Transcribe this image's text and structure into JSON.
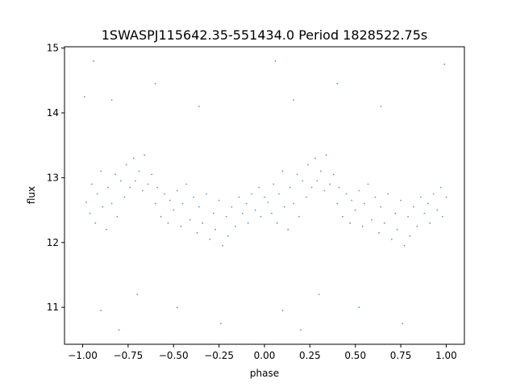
{
  "chart_data": {
    "type": "scatter",
    "title": "1SWASPJ115642.35-551434.0 Period 1828522.75s",
    "xlabel": "phase",
    "ylabel": "flux",
    "xlim": [
      -1.1,
      1.1
    ],
    "ylim": [
      10.43,
      15.02
    ],
    "grid": false,
    "point_color": "#1f77b4",
    "x_ticks": [
      -1.0,
      -0.75,
      -0.5,
      -0.25,
      0.0,
      0.25,
      0.5,
      0.75,
      1.0
    ],
    "x_tick_labels": [
      "−1.00",
      "−0.75",
      "−0.50",
      "−0.25",
      "0.00",
      "0.25",
      "0.50",
      "0.75",
      "1.00"
    ],
    "y_ticks": [
      11,
      12,
      13,
      14,
      15
    ],
    "y_tick_labels": [
      "11",
      "12",
      "13",
      "14",
      "15"
    ],
    "points": [
      [
        -0.98,
        12.62
      ],
      [
        -0.96,
        12.45
      ],
      [
        -0.95,
        12.9
      ],
      [
        -0.93,
        12.3
      ],
      [
        -0.92,
        12.75
      ],
      [
        -0.9,
        13.1
      ],
      [
        -0.89,
        12.55
      ],
      [
        -0.87,
        12.2
      ],
      [
        -0.86,
        12.85
      ],
      [
        -0.84,
        12.6
      ],
      [
        -0.82,
        13.05
      ],
      [
        -0.81,
        12.4
      ],
      [
        -0.79,
        12.95
      ],
      [
        -0.77,
        12.7
      ],
      [
        -0.76,
        13.2
      ],
      [
        -0.74,
        12.85
      ],
      [
        -0.72,
        13.3
      ],
      [
        -0.71,
        12.95
      ],
      [
        -0.69,
        13.1
      ],
      [
        -0.67,
        12.8
      ],
      [
        -0.66,
        13.35
      ],
      [
        -0.64,
        12.9
      ],
      [
        -0.62,
        13.05
      ],
      [
        -0.6,
        12.6
      ],
      [
        -0.59,
        12.85
      ],
      [
        -0.57,
        12.4
      ],
      [
        -0.55,
        12.75
      ],
      [
        -0.53,
        12.3
      ],
      [
        -0.52,
        12.65
      ],
      [
        -0.5,
        12.5
      ],
      [
        -0.48,
        12.8
      ],
      [
        -0.46,
        12.25
      ],
      [
        -0.45,
        12.6
      ],
      [
        -0.43,
        12.9
      ],
      [
        -0.41,
        12.35
      ],
      [
        -0.39,
        12.7
      ],
      [
        -0.37,
        12.15
      ],
      [
        -0.36,
        12.55
      ],
      [
        -0.34,
        12.3
      ],
      [
        -0.32,
        12.75
      ],
      [
        -0.3,
        12.05
      ],
      [
        -0.28,
        12.45
      ],
      [
        -0.27,
        12.2
      ],
      [
        -0.25,
        12.65
      ],
      [
        -0.23,
        11.95
      ],
      [
        -0.21,
        12.4
      ],
      [
        -0.2,
        12.1
      ],
      [
        -0.18,
        12.55
      ],
      [
        -0.16,
        12.25
      ],
      [
        -0.14,
        12.7
      ],
      [
        -0.12,
        12.45
      ],
      [
        -0.1,
        12.6
      ],
      [
        -0.09,
        12.3
      ],
      [
        -0.07,
        12.75
      ],
      [
        -0.05,
        12.5
      ],
      [
        -0.03,
        12.85
      ],
      [
        -0.02,
        12.4
      ],
      [
        0.0,
        12.7
      ],
      [
        0.02,
        12.62
      ],
      [
        0.04,
        12.45
      ],
      [
        0.05,
        12.9
      ],
      [
        0.07,
        12.3
      ],
      [
        0.08,
        12.75
      ],
      [
        0.1,
        13.1
      ],
      [
        0.11,
        12.55
      ],
      [
        0.13,
        12.2
      ],
      [
        0.14,
        12.85
      ],
      [
        0.16,
        12.6
      ],
      [
        0.18,
        13.05
      ],
      [
        0.19,
        12.4
      ],
      [
        0.21,
        12.95
      ],
      [
        0.23,
        12.7
      ],
      [
        0.24,
        13.2
      ],
      [
        0.26,
        12.85
      ],
      [
        0.28,
        13.3
      ],
      [
        0.29,
        12.95
      ],
      [
        0.31,
        13.1
      ],
      [
        0.33,
        12.8
      ],
      [
        0.34,
        13.35
      ],
      [
        0.36,
        12.9
      ],
      [
        0.38,
        13.05
      ],
      [
        0.4,
        12.6
      ],
      [
        0.41,
        12.85
      ],
      [
        0.43,
        12.4
      ],
      [
        0.45,
        12.75
      ],
      [
        0.47,
        12.3
      ],
      [
        0.48,
        12.65
      ],
      [
        0.5,
        12.5
      ],
      [
        0.52,
        12.8
      ],
      [
        0.54,
        12.25
      ],
      [
        0.55,
        12.6
      ],
      [
        0.57,
        12.9
      ],
      [
        0.59,
        12.35
      ],
      [
        0.61,
        12.7
      ],
      [
        0.63,
        12.15
      ],
      [
        0.64,
        12.55
      ],
      [
        0.66,
        12.3
      ],
      [
        0.68,
        12.75
      ],
      [
        0.7,
        12.05
      ],
      [
        0.72,
        12.45
      ],
      [
        0.73,
        12.2
      ],
      [
        0.75,
        12.65
      ],
      [
        0.77,
        11.95
      ],
      [
        0.79,
        12.4
      ],
      [
        0.8,
        12.1
      ],
      [
        0.82,
        12.55
      ],
      [
        0.84,
        12.25
      ],
      [
        0.86,
        12.7
      ],
      [
        0.88,
        12.45
      ],
      [
        0.9,
        12.6
      ],
      [
        0.91,
        12.3
      ],
      [
        0.93,
        12.75
      ],
      [
        0.95,
        12.5
      ],
      [
        0.97,
        12.85
      ],
      [
        0.98,
        12.4
      ],
      [
        1.0,
        12.7
      ],
      [
        -0.94,
        14.8
      ],
      [
        -0.84,
        14.2
      ],
      [
        -0.6,
        14.45
      ],
      [
        -0.36,
        14.1
      ],
      [
        0.06,
        14.8
      ],
      [
        0.16,
        14.2
      ],
      [
        0.4,
        14.45
      ],
      [
        0.64,
        14.1
      ],
      [
        0.99,
        14.75
      ],
      [
        -0.99,
        14.25
      ],
      [
        -0.9,
        10.95
      ],
      [
        -0.8,
        10.65
      ],
      [
        -0.48,
        11.0
      ],
      [
        -0.24,
        10.75
      ],
      [
        0.1,
        10.95
      ],
      [
        0.2,
        10.65
      ],
      [
        0.52,
        11.0
      ],
      [
        0.76,
        10.75
      ],
      [
        -0.7,
        11.2
      ],
      [
        0.3,
        11.2
      ]
    ]
  }
}
